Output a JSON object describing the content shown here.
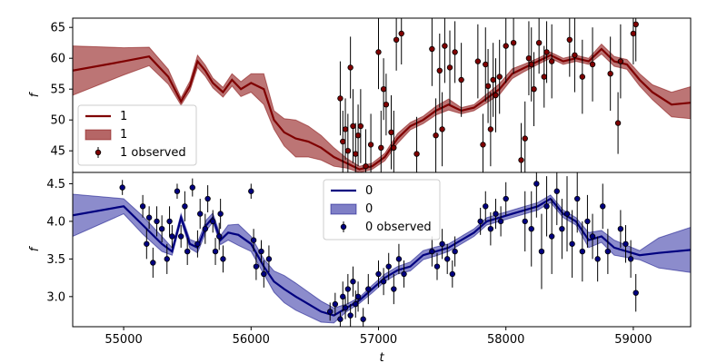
{
  "chart_data": [
    {
      "type": "line",
      "panel": "top",
      "xlabel": "",
      "ylabel": "f",
      "xlim": [
        54600,
        59450
      ],
      "ylim": [
        41.5,
        66.5
      ],
      "yticks": [
        45,
        50,
        55,
        60,
        65
      ],
      "colors": {
        "line": "#7f0000",
        "band": "#b56666",
        "points": "#7f0000",
        "errorbars": "#000000"
      },
      "legend": {
        "position": "lower-left",
        "entries": [
          "1",
          "1",
          "1 observed"
        ]
      },
      "series": [
        {
          "name": "1",
          "kind": "mean",
          "x": [
            54600,
            55000,
            55200,
            55350,
            55450,
            55520,
            55580,
            55640,
            55700,
            55780,
            55850,
            55920,
            56000,
            56100,
            56180,
            56260,
            56350,
            56450,
            56550,
            56650,
            56750,
            56850,
            56950,
            57050,
            57150,
            57250,
            57350,
            57450,
            57550,
            57650,
            57750,
            57850,
            57950,
            58050,
            58150,
            58250,
            58350,
            58450,
            58550,
            58650,
            58750,
            58850,
            58950,
            59050,
            59150,
            59300,
            59450
          ],
          "y": [
            58.0,
            59.5,
            60.3,
            57.0,
            53.0,
            55.5,
            59.5,
            58.0,
            56.0,
            54.5,
            56.5,
            55.0,
            56.0,
            55.0,
            50.0,
            48.0,
            47.0,
            46.5,
            45.5,
            44.0,
            43.0,
            42.0,
            42.5,
            44.0,
            47.0,
            49.0,
            50.0,
            51.5,
            52.5,
            51.5,
            52.0,
            53.5,
            55.0,
            57.5,
            58.5,
            59.5,
            60.5,
            59.5,
            60.0,
            59.5,
            61.5,
            59.5,
            59.0,
            56.5,
            54.5,
            52.5,
            52.8
          ]
        },
        {
          "name": "1",
          "kind": "band",
          "x": [
            54600,
            55000,
            55200,
            55350,
            55450,
            55520,
            55580,
            55640,
            55700,
            55780,
            55850,
            55920,
            56000,
            56100,
            56180,
            56260,
            56350,
            56450,
            56550,
            56650,
            56750,
            56850,
            56950,
            57050,
            57150,
            57250,
            57350,
            57450,
            57550,
            57650,
            57750,
            57850,
            57950,
            58050,
            58150,
            58250,
            58350,
            58450,
            58550,
            58650,
            58750,
            58850,
            58950,
            59050,
            59150,
            59300,
            59450
          ],
          "half_width": [
            4.0,
            2.2,
            1.5,
            1.2,
            0.6,
            0.8,
            1.0,
            0.9,
            0.8,
            0.8,
            1.0,
            1.2,
            1.5,
            2.5,
            1.5,
            2.2,
            3.0,
            2.5,
            2.0,
            1.5,
            0.8,
            0.5,
            0.5,
            0.6,
            0.8,
            0.6,
            0.6,
            0.7,
            0.9,
            0.5,
            0.5,
            0.7,
            0.9,
            0.8,
            0.6,
            0.5,
            0.5,
            0.5,
            0.5,
            0.5,
            0.8,
            0.8,
            0.8,
            1.0,
            1.2,
            2.0,
            2.6
          ]
        },
        {
          "name": "1 observed",
          "kind": "observed",
          "x": [
            56700,
            56720,
            56740,
            56760,
            56780,
            56800,
            56820,
            56840,
            56860,
            56900,
            56940,
            57000,
            57020,
            57040,
            57060,
            57100,
            57120,
            57140,
            57180,
            57300,
            57420,
            57450,
            57480,
            57500,
            57520,
            57560,
            57600,
            57650,
            57780,
            57820,
            57840,
            57860,
            57880,
            57900,
            57920,
            57950,
            58000,
            58060,
            58120,
            58150,
            58180,
            58200,
            58220,
            58260,
            58300,
            58320,
            58360,
            58500,
            58540,
            58600,
            58680,
            58820,
            58880,
            58900,
            59000,
            59020
          ],
          "y": [
            53.5,
            46.5,
            48.5,
            45.0,
            58.5,
            49.0,
            44.5,
            47.5,
            49.0,
            42.5,
            46.0,
            61.0,
            45.5,
            55.0,
            52.5,
            48.0,
            45.5,
            63.0,
            64.0,
            44.5,
            61.5,
            47.5,
            58.0,
            48.5,
            62.0,
            58.5,
            61.0,
            56.5,
            59.5,
            46.0,
            59.0,
            55.5,
            48.5,
            56.5,
            54.0,
            57.0,
            62.0,
            62.5,
            43.5,
            47.0,
            60.0,
            59.0,
            55.0,
            62.5,
            57.0,
            61.0,
            59.5,
            63.0,
            60.5,
            57.0,
            59.0,
            57.5,
            49.5,
            59.5,
            64.0,
            65.5
          ],
          "err": [
            6,
            5,
            5,
            6,
            5,
            6,
            5,
            5,
            6,
            6,
            5,
            6,
            6,
            5,
            5,
            6,
            6,
            5,
            5,
            6,
            6,
            6,
            6,
            6,
            6,
            6,
            5,
            6,
            6,
            5,
            6,
            6,
            6,
            6,
            6,
            6,
            6,
            5,
            6,
            6,
            6,
            6,
            6,
            5,
            5,
            5,
            6,
            6,
            6,
            6,
            6,
            6,
            5,
            6,
            5,
            6
          ]
        }
      ]
    },
    {
      "type": "line",
      "panel": "bottom",
      "xlabel": "t",
      "ylabel": "f",
      "xlim": [
        54600,
        59450
      ],
      "ylim": [
        2.6,
        4.65
      ],
      "xticks": [
        55000,
        56000,
        57000,
        58000,
        59000
      ],
      "yticks": [
        3.0,
        3.5,
        4.0,
        4.5
      ],
      "colors": {
        "line": "#00007f",
        "band": "#7f7fc6",
        "points": "#00007f",
        "errorbars": "#000000"
      },
      "legend": {
        "position": "top-center",
        "entries": [
          "0",
          "0",
          "0 observed"
        ]
      },
      "series": [
        {
          "name": "0",
          "kind": "mean",
          "x": [
            54600,
            55000,
            55150,
            55300,
            55380,
            55450,
            55520,
            55580,
            55650,
            55700,
            55760,
            55820,
            55900,
            56000,
            56100,
            56180,
            56260,
            56350,
            56450,
            56550,
            56650,
            56750,
            56850,
            56950,
            57050,
            57150,
            57250,
            57350,
            57450,
            57550,
            57650,
            57750,
            57850,
            57950,
            58050,
            58150,
            58250,
            58350,
            58450,
            58550,
            58650,
            58750,
            58850,
            58950,
            59050,
            59200,
            59450
          ],
          "y": [
            4.08,
            4.2,
            3.95,
            3.7,
            3.6,
            4.05,
            3.7,
            3.65,
            3.95,
            4.05,
            3.75,
            3.85,
            3.82,
            3.7,
            3.4,
            3.2,
            3.1,
            3.0,
            2.9,
            2.8,
            2.75,
            2.85,
            2.95,
            3.1,
            3.25,
            3.35,
            3.4,
            3.55,
            3.6,
            3.65,
            3.75,
            3.85,
            4.0,
            4.05,
            4.1,
            4.15,
            4.2,
            4.3,
            4.1,
            4.0,
            3.75,
            3.8,
            3.65,
            3.6,
            3.55,
            3.58,
            3.62
          ]
        },
        {
          "name": "0",
          "kind": "band",
          "x": [
            54600,
            55000,
            55150,
            55300,
            55380,
            55450,
            55520,
            55580,
            55650,
            55700,
            55760,
            55820,
            55900,
            56000,
            56100,
            56180,
            56260,
            56350,
            56450,
            56550,
            56650,
            56750,
            56850,
            56950,
            57050,
            57150,
            57250,
            57350,
            57450,
            57550,
            57650,
            57750,
            57850,
            57950,
            58050,
            58150,
            58250,
            58350,
            58450,
            58550,
            58650,
            58750,
            58850,
            58950,
            59050,
            59200,
            59450
          ],
          "half_width": [
            0.28,
            0.1,
            0.12,
            0.1,
            0.05,
            0.05,
            0.06,
            0.07,
            0.07,
            0.06,
            0.06,
            0.1,
            0.14,
            0.1,
            0.1,
            0.14,
            0.18,
            0.18,
            0.16,
            0.14,
            0.1,
            0.05,
            0.04,
            0.05,
            0.05,
            0.05,
            0.06,
            0.06,
            0.06,
            0.05,
            0.05,
            0.05,
            0.05,
            0.05,
            0.05,
            0.05,
            0.05,
            0.05,
            0.05,
            0.05,
            0.1,
            0.08,
            0.1,
            0.08,
            0.06,
            0.2,
            0.3
          ]
        },
        {
          "name": "0 observed",
          "kind": "observed",
          "x": [
            54990,
            55150,
            55180,
            55200,
            55230,
            55260,
            55300,
            55340,
            55360,
            55380,
            55420,
            55450,
            55480,
            55500,
            55540,
            55580,
            55600,
            55640,
            55660,
            55700,
            55720,
            55750,
            55760,
            55780,
            56000,
            56020,
            56040,
            56080,
            56100,
            56140,
            56620,
            56660,
            56700,
            56720,
            56740,
            56760,
            56780,
            56800,
            56820,
            56840,
            56880,
            56920,
            57000,
            57040,
            57080,
            57120,
            57160,
            57200,
            57420,
            57460,
            57500,
            57540,
            57580,
            57600,
            57800,
            57840,
            57880,
            57920,
            57960,
            58000,
            58150,
            58200,
            58240,
            58280,
            58320,
            58360,
            58400,
            58440,
            58480,
            58520,
            58560,
            58600,
            58640,
            58680,
            58720,
            58760,
            58800,
            58900,
            58940,
            58980,
            59020
          ],
          "y": [
            4.45,
            4.2,
            3.7,
            4.05,
            3.45,
            4.0,
            3.9,
            3.5,
            4.0,
            3.8,
            4.4,
            3.8,
            4.2,
            3.6,
            4.45,
            3.7,
            4.1,
            3.9,
            4.3,
            4.0,
            3.6,
            3.8,
            4.1,
            3.5,
            4.4,
            3.75,
            3.4,
            3.6,
            3.3,
            3.5,
            2.8,
            2.9,
            2.7,
            3.0,
            2.85,
            3.1,
            2.75,
            3.2,
            2.9,
            3.0,
            2.7,
            3.1,
            3.3,
            3.2,
            3.4,
            3.1,
            3.5,
            3.3,
            3.6,
            3.4,
            3.7,
            3.5,
            3.3,
            3.6,
            4.0,
            4.2,
            3.9,
            4.1,
            4.0,
            4.3,
            4.0,
            3.9,
            4.5,
            3.6,
            4.2,
            3.8,
            4.4,
            3.9,
            4.1,
            3.7,
            4.3,
            3.6,
            4.0,
            3.8,
            3.5,
            4.2,
            3.6,
            3.9,
            3.7,
            3.5,
            3.05
          ],
          "err": [
            0.1,
            0.15,
            0.2,
            0.15,
            0.2,
            0.2,
            0.18,
            0.2,
            0.2,
            0.15,
            0.1,
            0.15,
            0.2,
            0.18,
            0.12,
            0.18,
            0.2,
            0.2,
            0.18,
            0.15,
            0.18,
            0.18,
            0.2,
            0.18,
            0.1,
            0.15,
            0.18,
            0.15,
            0.18,
            0.18,
            0.12,
            0.15,
            0.1,
            0.2,
            0.15,
            0.2,
            0.15,
            0.2,
            0.18,
            0.2,
            0.15,
            0.2,
            0.18,
            0.18,
            0.18,
            0.2,
            0.2,
            0.18,
            0.2,
            0.18,
            0.2,
            0.2,
            0.18,
            0.2,
            0.18,
            0.2,
            0.22,
            0.2,
            0.2,
            0.22,
            0.4,
            0.5,
            0.45,
            0.5,
            0.4,
            0.5,
            0.45,
            0.4,
            0.5,
            0.45,
            0.45,
            0.4,
            0.35,
            0.3,
            0.3,
            0.3,
            0.3,
            0.25,
            0.25,
            0.25,
            0.25
          ]
        }
      ]
    }
  ]
}
